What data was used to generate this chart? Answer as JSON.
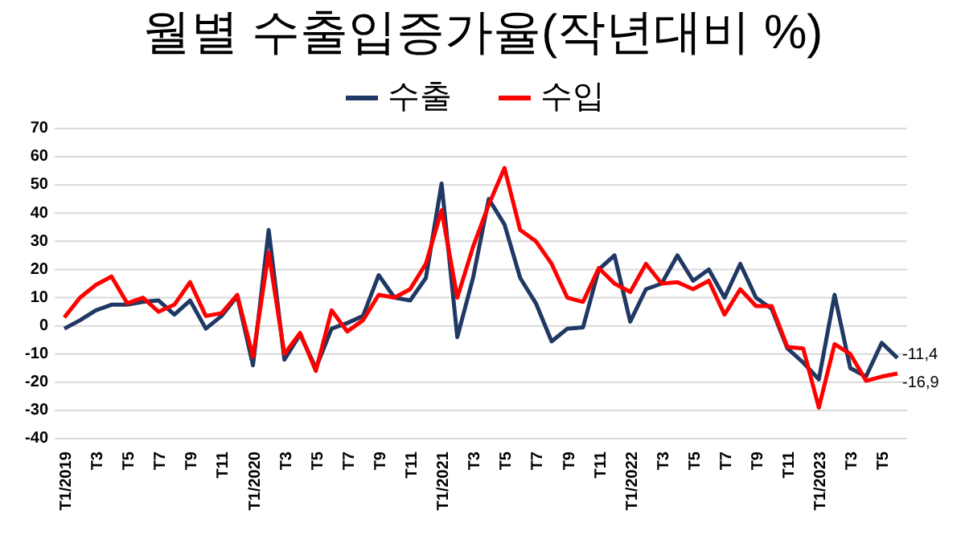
{
  "chart_data": {
    "type": "line",
    "title": "월별 수출입증가율(작년대비 %)",
    "categories": [
      "T1/2019",
      null,
      "T3",
      null,
      "T5",
      null,
      "T7",
      null,
      "T9",
      null,
      "T11",
      null,
      "T1/2020",
      null,
      "T3",
      null,
      "T5",
      null,
      "T7",
      null,
      "T9",
      null,
      "T11",
      null,
      "T1/2021",
      null,
      "T3",
      null,
      "T5",
      null,
      "T7",
      null,
      "T9",
      null,
      "T11",
      null,
      "T1/2022",
      null,
      "T3",
      null,
      "T5",
      null,
      "T7",
      null,
      "T9",
      null,
      "T11",
      null,
      "T1/2023",
      null,
      "T3",
      null,
      "T5",
      null
    ],
    "series": [
      {
        "name": "수출",
        "color": "#1f3864",
        "values": [
          -1,
          2,
          5.5,
          7.5,
          7.5,
          8.5,
          9,
          4,
          9,
          -1,
          3.5,
          10.5,
          -14,
          34,
          -12,
          -3,
          -15,
          -1,
          1,
          3.5,
          18,
          10,
          9,
          17,
          50.5,
          -4,
          17,
          45,
          36,
          17,
          8,
          -5.5,
          -1,
          -0.5,
          20,
          25,
          1.5,
          13,
          15,
          25,
          16,
          20,
          10,
          22,
          10,
          6,
          -8,
          -13,
          -19,
          11,
          -15,
          -18,
          -6,
          -11.4
        ],
        "value_labels": [
          null,
          null,
          null,
          null,
          null,
          null,
          null,
          null,
          null,
          null,
          null,
          null,
          null,
          null,
          null,
          null,
          null,
          null,
          null,
          null,
          null,
          null,
          null,
          null,
          null,
          null,
          null,
          null,
          null,
          null,
          null,
          null,
          null,
          null,
          null,
          null,
          null,
          null,
          null,
          null,
          null,
          null,
          null,
          null,
          null,
          null,
          null,
          null,
          null,
          null,
          null,
          null,
          null,
          "-11,4"
        ]
      },
      {
        "name": "수입",
        "color": "#ff0000",
        "values": [
          3,
          10,
          14.5,
          17.5,
          8,
          10,
          5,
          7.5,
          15.5,
          3.5,
          4.5,
          11,
          -11,
          26,
          -10,
          -2.5,
          -16,
          5.5,
          -2,
          2,
          11,
          10,
          13,
          22,
          41,
          10,
          28,
          43,
          56,
          34,
          30,
          22,
          10,
          8.5,
          20.5,
          15,
          12,
          22,
          15,
          15.5,
          13,
          16,
          4,
          13,
          7,
          7,
          -7.5,
          -8,
          -29,
          -6.5,
          -10,
          -19.5,
          -18,
          -16.9
        ],
        "value_labels": [
          null,
          null,
          null,
          null,
          null,
          null,
          null,
          null,
          null,
          null,
          null,
          null,
          null,
          null,
          null,
          null,
          null,
          null,
          null,
          null,
          null,
          null,
          null,
          null,
          null,
          null,
          null,
          null,
          null,
          null,
          null,
          null,
          null,
          null,
          null,
          null,
          null,
          null,
          null,
          null,
          null,
          null,
          null,
          null,
          null,
          null,
          null,
          null,
          null,
          null,
          null,
          null,
          null,
          "-16,9"
        ]
      }
    ],
    "ylim": [
      -40,
      70
    ],
    "yticks": [
      -40,
      -30,
      -20,
      -10,
      0,
      10,
      20,
      30,
      40,
      50,
      60,
      70
    ],
    "grid": "y",
    "legend": "top",
    "marker": "none",
    "line_style": "solid"
  }
}
